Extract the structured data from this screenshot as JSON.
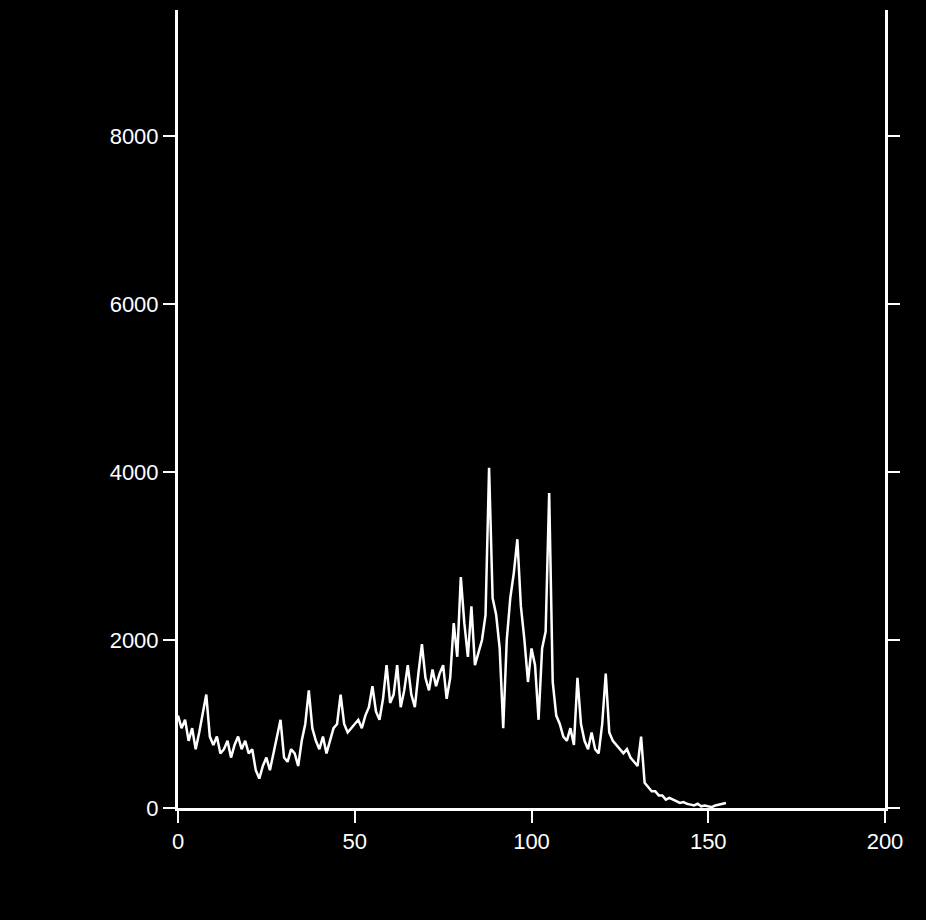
{
  "chart_data": {
    "type": "line",
    "x": [
      0,
      1,
      2,
      3,
      4,
      5,
      6,
      7,
      8,
      9,
      10,
      11,
      12,
      13,
      14,
      15,
      16,
      17,
      18,
      19,
      20,
      21,
      22,
      23,
      24,
      25,
      26,
      27,
      28,
      29,
      30,
      31,
      32,
      33,
      34,
      35,
      36,
      37,
      38,
      39,
      40,
      41,
      42,
      43,
      44,
      45,
      46,
      47,
      48,
      49,
      50,
      51,
      52,
      53,
      54,
      55,
      56,
      57,
      58,
      59,
      60,
      61,
      62,
      63,
      64,
      65,
      66,
      67,
      68,
      69,
      70,
      71,
      72,
      73,
      74,
      75,
      76,
      77,
      78,
      79,
      80,
      81,
      82,
      83,
      84,
      85,
      86,
      87,
      88,
      89,
      90,
      91,
      92,
      93,
      94,
      95,
      96,
      97,
      98,
      99,
      100,
      101,
      102,
      103,
      104,
      105,
      106,
      107,
      108,
      109,
      110,
      111,
      112,
      113,
      114,
      115,
      116,
      117,
      118,
      119,
      120,
      121,
      122,
      123,
      124,
      125,
      126,
      127,
      128,
      129,
      130,
      131,
      132,
      133,
      134,
      135,
      136,
      137,
      138,
      139,
      140,
      141,
      142,
      143,
      144,
      145,
      146,
      147,
      148,
      149,
      150,
      151,
      152,
      153,
      154,
      155
    ],
    "values": [
      1100,
      950,
      1050,
      800,
      950,
      700,
      900,
      1150,
      1350,
      850,
      750,
      850,
      650,
      700,
      800,
      600,
      750,
      850,
      700,
      800,
      650,
      700,
      450,
      350,
      500,
      600,
      450,
      650,
      850,
      1050,
      600,
      550,
      700,
      650,
      500,
      800,
      1000,
      1400,
      950,
      800,
      700,
      850,
      650,
      800,
      950,
      1000,
      1350,
      1000,
      900,
      950,
      1000,
      1050,
      950,
      1100,
      1200,
      1450,
      1150,
      1050,
      1300,
      1700,
      1250,
      1350,
      1700,
      1200,
      1400,
      1700,
      1350,
      1200,
      1600,
      1950,
      1550,
      1400,
      1650,
      1450,
      1600,
      1700,
      1300,
      1550,
      2200,
      1800,
      2750,
      2200,
      1800,
      2400,
      1700,
      1850,
      2000,
      2300,
      4050,
      2500,
      2300,
      1900,
      950,
      2000,
      2500,
      2800,
      3200,
      2400,
      2000,
      1500,
      1900,
      1700,
      1050,
      1900,
      2100,
      3750,
      1500,
      1100,
      1000,
      850,
      800,
      950,
      750,
      1550,
      1000,
      800,
      700,
      900,
      700,
      650,
      1000,
      1600,
      900,
      800,
      750,
      700,
      650,
      700,
      600,
      550,
      500,
      850,
      300,
      250,
      200,
      200,
      150,
      150,
      100,
      120,
      100,
      80,
      60,
      70,
      50,
      40,
      30,
      50,
      20,
      30,
      20,
      10,
      30,
      40,
      50,
      60
    ],
    "color": "#ffffff",
    "xlim": [
      0,
      200
    ],
    "xticks": [
      0,
      50,
      100,
      150,
      200
    ],
    "ylim": [
      0,
      9500
    ],
    "yticks": [
      0,
      2000,
      4000,
      6000,
      8000
    ],
    "grid": false
  }
}
